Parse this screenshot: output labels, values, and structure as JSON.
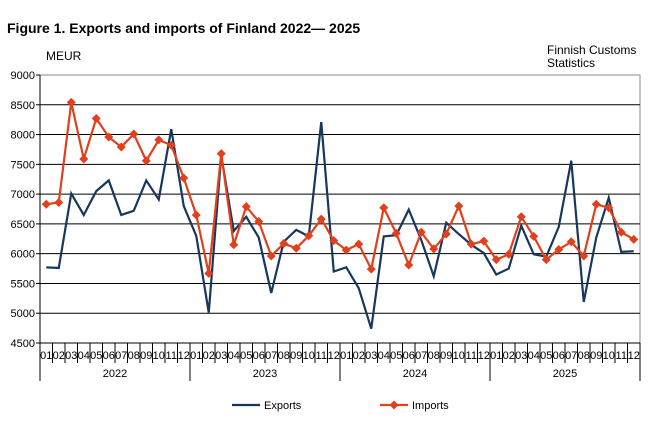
{
  "chart_data": {
    "type": "line",
    "title": "Figure 1. Exports and imports of Finland 2022— 2025",
    "ylabel": "MEUR",
    "source": [
      "Finnish Customs",
      "Statistics"
    ],
    "ylim": [
      4500,
      9000
    ],
    "yticks": [
      4500,
      5000,
      5500,
      6000,
      6500,
      7000,
      7500,
      8000,
      8500,
      9000
    ],
    "grid": true,
    "legend": "bottom",
    "years": [
      "2022",
      "2023",
      "2024",
      "2025"
    ],
    "months": [
      "01",
      "02",
      "03",
      "04",
      "05",
      "06",
      "07",
      "08",
      "09",
      "10",
      "11",
      "12"
    ],
    "series": [
      {
        "name": "Exports",
        "color": "#17375e",
        "marker": "none",
        "values": [
          5770,
          5760,
          7010,
          6650,
          7050,
          7230,
          6650,
          6720,
          7230,
          6910,
          8090,
          6800,
          6300,
          5010,
          7650,
          6380,
          6620,
          6270,
          5340,
          6200,
          6400,
          6290,
          8210,
          5700,
          5770,
          5420,
          4740,
          6290,
          6310,
          6740,
          6230,
          5620,
          6520,
          6330,
          6150,
          6010,
          5650,
          5750,
          6470,
          5990,
          5950,
          6450,
          7560,
          5190,
          6270,
          6940,
          6030,
          6040
        ]
      },
      {
        "name": "Imports",
        "color": "#e0401c",
        "marker": "diamond",
        "values": [
          6830,
          6860,
          8540,
          7590,
          8270,
          7960,
          7790,
          8010,
          7560,
          7910,
          7820,
          7270,
          6650,
          5670,
          7680,
          6150,
          6790,
          6540,
          5960,
          6170,
          6090,
          6300,
          6580,
          6220,
          6060,
          6160,
          5740,
          6770,
          6340,
          5810,
          6360,
          6080,
          6330,
          6800,
          6160,
          6210,
          5900,
          5990,
          6620,
          6290,
          5900,
          6070,
          6200,
          5960,
          6830,
          6770,
          6360,
          6240
        ]
      }
    ]
  }
}
